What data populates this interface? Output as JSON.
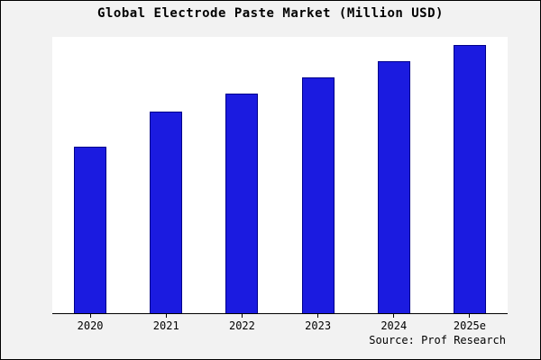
{
  "chart_data": {
    "type": "bar",
    "title": "Global Electrode Paste Market (Million USD)",
    "categories": [
      "2020",
      "2021",
      "2022",
      "2023",
      "2024",
      "2025e"
    ],
    "values": [
      62,
      75,
      82,
      88,
      94,
      100
    ],
    "xlabel": "",
    "ylabel": "",
    "ylim": [
      0,
      103
    ],
    "grid": false,
    "legend": false,
    "bar_color": "#1b1be0",
    "bar_border_color": "#00008b",
    "plot_background": "#ffffff",
    "outer_background": "#f2f2f2"
  },
  "source": {
    "text": "Source: Prof Research"
  }
}
